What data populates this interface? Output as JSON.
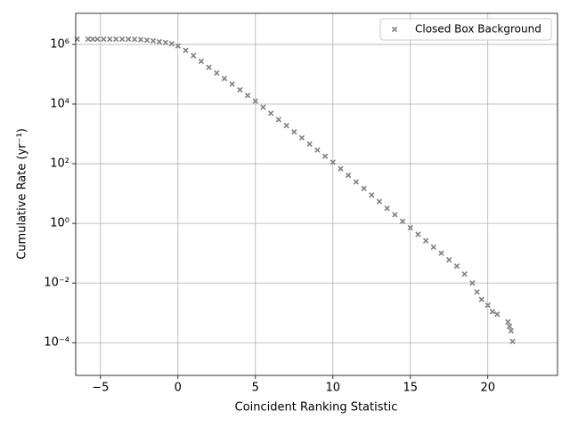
{
  "chart_data": {
    "type": "scatter",
    "xlabel": "Coincident Ranking Statistic",
    "ylabel": "Cumulative Rate (yr⁻¹)",
    "yscale": "log",
    "grid": true,
    "legend": "upper right",
    "xlim": [
      -6.6,
      24.5
    ],
    "ylim": [
      8e-06,
      11000000
    ],
    "xticks": [
      {
        "value": -5,
        "label": "−5"
      },
      0,
      5,
      10,
      15,
      20
    ],
    "yticks": [
      {
        "value": 0.0001,
        "label": "10⁻⁴"
      },
      {
        "value": 0.01,
        "label": "10⁻²"
      },
      {
        "value": 1,
        "label": "10⁰"
      },
      {
        "value": 100,
        "label": "10²"
      },
      {
        "value": 10000,
        "label": "10⁴"
      },
      {
        "value": 1000000,
        "label": "10⁶"
      }
    ],
    "series": [
      {
        "name": "Closed Box Background",
        "color": "#808080",
        "marker": "x",
        "x": [
          -6.5,
          -5.8,
          -5.5,
          -5.2,
          -4.8,
          -4.4,
          -4.0,
          -3.6,
          -3.2,
          -2.8,
          -2.4,
          -2.0,
          -1.6,
          -1.2,
          -0.8,
          -0.4,
          0,
          0.5,
          1,
          1.5,
          2,
          2.5,
          3,
          3.5,
          4,
          4.5,
          5,
          5.5,
          6,
          6.5,
          7,
          7.5,
          8,
          8.5,
          9,
          9.5,
          10,
          10.5,
          11,
          11.5,
          12,
          12.5,
          13,
          13.5,
          14,
          14.5,
          15,
          15.5,
          16,
          16.5,
          17,
          17.5,
          18,
          18.5,
          19,
          19.3,
          19.6,
          20,
          20.3,
          20.6,
          21.3,
          21.4,
          21.5,
          21.6
        ],
        "values": [
          1500000,
          1500000,
          1500000,
          1500000,
          1500000,
          1500000,
          1500000,
          1500000,
          1500000,
          1480000,
          1450000,
          1380000,
          1320000,
          1230000,
          1150000,
          1050000,
          890000,
          630000,
          420000,
          270000,
          170000,
          110000,
          72000,
          47000,
          30000,
          19500,
          12600,
          7800,
          4900,
          3000,
          1900,
          1170,
          740,
          457,
          288,
          178,
          112,
          68,
          41,
          24.5,
          14.8,
          8.9,
          5.4,
          3.2,
          1.95,
          1.17,
          0.71,
          0.43,
          0.26,
          0.16,
          0.1,
          0.06,
          0.037,
          0.02,
          0.01,
          0.005,
          0.0028,
          0.0018,
          0.0011,
          0.0009,
          0.0005,
          0.00035,
          0.00025,
          0.00011
        ]
      }
    ]
  }
}
